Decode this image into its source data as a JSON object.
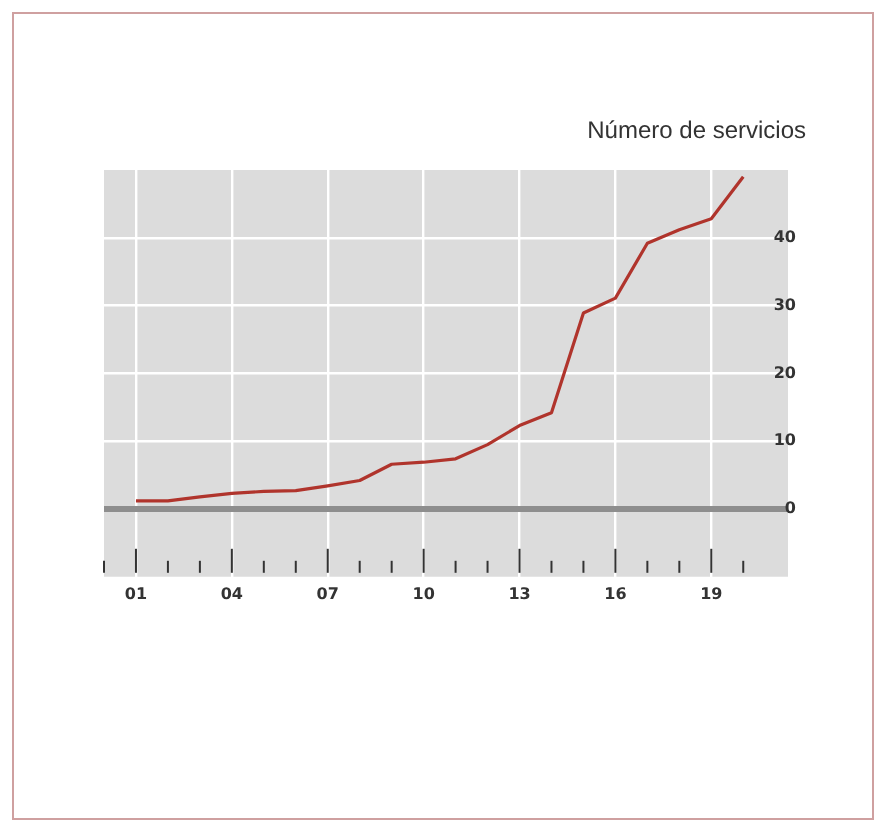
{
  "chart_data": {
    "type": "line",
    "title": "Número de servicios",
    "x": [
      1,
      2,
      3,
      4,
      5,
      6,
      7,
      8,
      9,
      10,
      11,
      12,
      13,
      14,
      15,
      16,
      17,
      18,
      19,
      20
    ],
    "series": [
      {
        "color": "#b0342c",
        "values": [
          1.2,
          1.2,
          1.8,
          2.3,
          2.6,
          2.7,
          3.4,
          4.2,
          6.6,
          6.9,
          7.4,
          9.5,
          12.3,
          14.2,
          28.9,
          31.1,
          39.2,
          41.2,
          42.8,
          49
        ]
      }
    ],
    "xlim": [
      0,
      21.4
    ],
    "xticks": [
      {
        "value": 0,
        "label": null
      },
      {
        "value": 1,
        "label": "01"
      },
      {
        "value": 2,
        "label": null
      },
      {
        "value": 3,
        "label": null
      },
      {
        "value": 4,
        "label": "04"
      },
      {
        "value": 5,
        "label": null
      },
      {
        "value": 6,
        "label": null
      },
      {
        "value": 7,
        "label": "07"
      },
      {
        "value": 8,
        "label": null
      },
      {
        "value": 9,
        "label": null
      },
      {
        "value": 10,
        "label": "10"
      },
      {
        "value": 11,
        "label": null
      },
      {
        "value": 12,
        "label": null
      },
      {
        "value": 13,
        "label": "13"
      },
      {
        "value": 14,
        "label": null
      },
      {
        "value": 15,
        "label": null
      },
      {
        "value": 16,
        "label": "16"
      },
      {
        "value": 17,
        "label": null
      },
      {
        "value": 18,
        "label": null
      },
      {
        "value": 19,
        "label": "19"
      },
      {
        "value": 20,
        "label": null
      }
    ],
    "ylim": [
      -10,
      50
    ],
    "yticks": [
      0,
      10,
      20,
      30,
      40
    ],
    "grid": true,
    "legend": false,
    "marker": "none",
    "line_style": "solid"
  }
}
